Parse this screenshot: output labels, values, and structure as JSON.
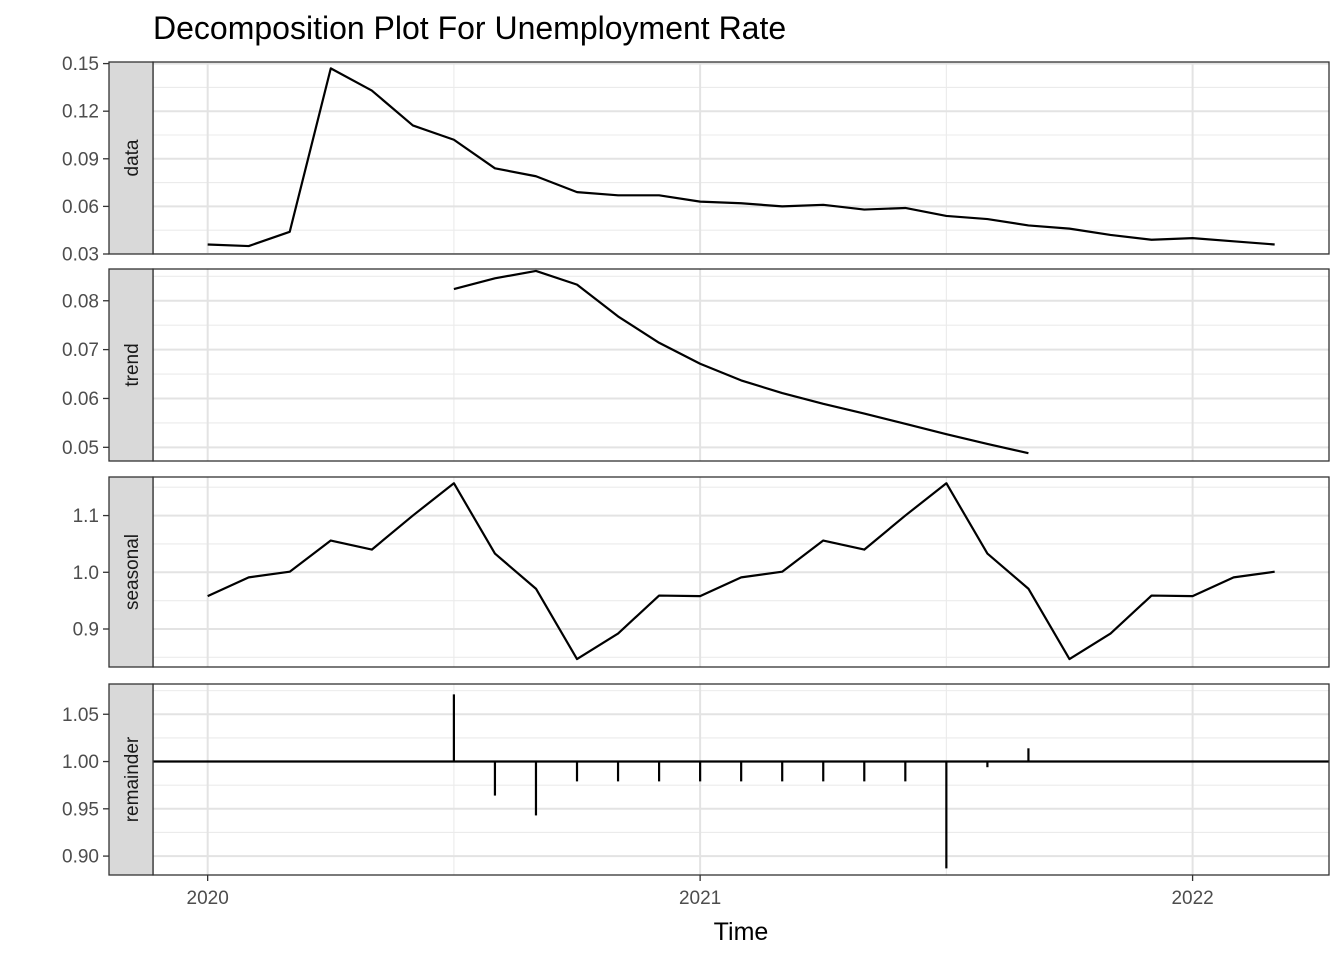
{
  "chart_data": {
    "type": "line",
    "title": "Decomposition Plot For Unemployment Rate",
    "xlabel": "Time",
    "xlim": [
      2019.889,
      2022.277
    ],
    "x_ticks": [
      {
        "value": 2020,
        "label": "2020"
      },
      {
        "value": 2021,
        "label": "2021"
      },
      {
        "value": 2022,
        "label": "2022"
      }
    ],
    "x_start": 2020.0,
    "x_step": 0.08333333,
    "grid": true,
    "panels": [
      {
        "name": "data",
        "kind": "line",
        "ylim": [
          0.03,
          0.151
        ],
        "y_ticks": [
          {
            "value": 0.03,
            "label": "0.03"
          },
          {
            "value": 0.06,
            "label": "0.06"
          },
          {
            "value": 0.09,
            "label": "0.09"
          },
          {
            "value": 0.12,
            "label": "0.12"
          },
          {
            "value": 0.15,
            "label": "0.15"
          }
        ],
        "values": [
          0.036,
          0.035,
          0.044,
          0.147,
          0.133,
          0.111,
          0.102,
          0.084,
          0.079,
          0.069,
          0.067,
          0.067,
          0.063,
          0.062,
          0.06,
          0.061,
          0.058,
          0.059,
          0.054,
          0.052,
          0.048,
          0.046,
          0.042,
          0.039,
          0.04,
          0.038,
          0.036
        ]
      },
      {
        "name": "trend",
        "kind": "line",
        "ylim": [
          0.0472,
          0.0865
        ],
        "y_ticks": [
          {
            "value": 0.05,
            "label": "0.05"
          },
          {
            "value": 0.06,
            "label": "0.06"
          },
          {
            "value": 0.07,
            "label": "0.07"
          },
          {
            "value": 0.08,
            "label": "0.08"
          }
        ],
        "values": [
          null,
          null,
          null,
          null,
          null,
          null,
          0.0824,
          0.0846,
          0.0861,
          0.0833,
          0.0768,
          0.0714,
          0.0671,
          0.0637,
          0.0611,
          0.0589,
          0.0569,
          0.0548,
          0.0527,
          0.0507,
          0.0488,
          null,
          null,
          null,
          null,
          null,
          null
        ]
      },
      {
        "name": "seasonal",
        "kind": "line",
        "ylim": [
          0.833,
          1.168
        ],
        "y_ticks": [
          {
            "value": 0.9,
            "label": "0.9"
          },
          {
            "value": 1.0,
            "label": "1.0"
          },
          {
            "value": 1.1,
            "label": "1.1"
          }
        ],
        "values": [
          0.958,
          0.991,
          1.001,
          1.056,
          1.04,
          1.1,
          1.157,
          1.033,
          0.971,
          0.847,
          0.892,
          0.959,
          0.958,
          0.991,
          1.001,
          1.056,
          1.04,
          1.1,
          1.157,
          1.033,
          0.971,
          0.847,
          0.892,
          0.959,
          0.958,
          0.991,
          1.001
        ]
      },
      {
        "name": "remainder",
        "kind": "bar-from-1",
        "ylim": [
          0.88,
          1.082
        ],
        "y_ticks": [
          {
            "value": 0.9,
            "label": "0.90"
          },
          {
            "value": 0.95,
            "label": "0.95"
          },
          {
            "value": 1.0,
            "label": "1.00"
          },
          {
            "value": 1.05,
            "label": "1.05"
          }
        ],
        "values": [
          null,
          null,
          null,
          null,
          null,
          null,
          1.071,
          0.964,
          0.943,
          0.979,
          0.979,
          0.979,
          0.979,
          0.979,
          0.979,
          0.979,
          0.979,
          0.979,
          0.887,
          0.994,
          1.014,
          null,
          null,
          null,
          null,
          null,
          null
        ]
      }
    ]
  }
}
